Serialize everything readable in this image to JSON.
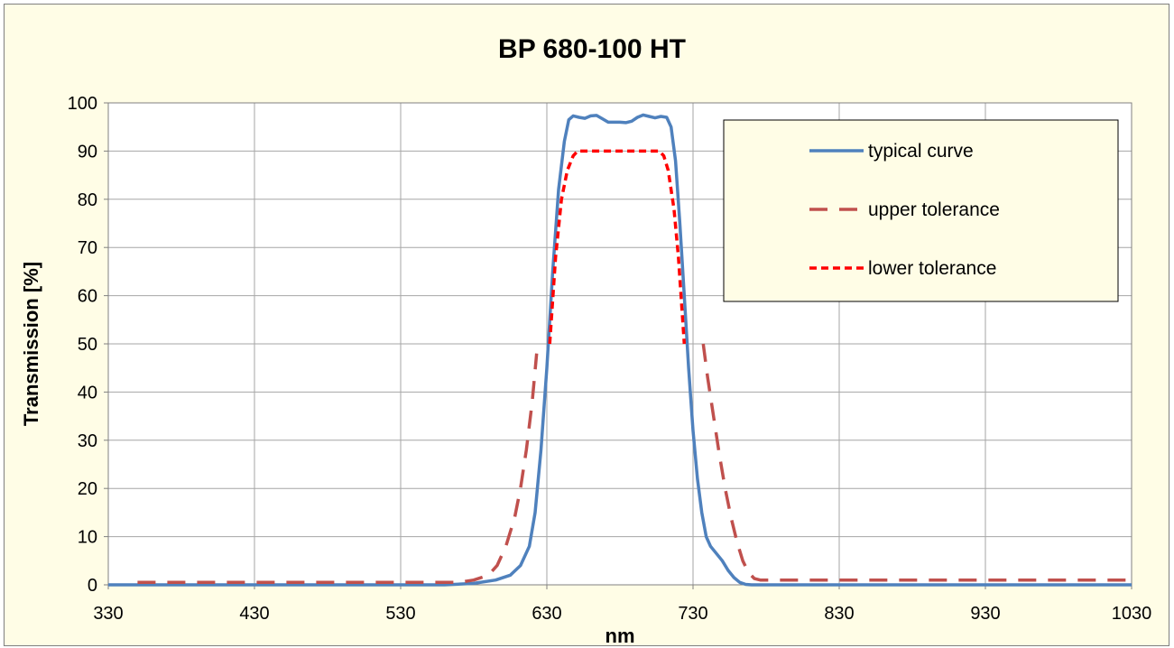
{
  "chart_data": {
    "type": "line",
    "title": "BP 680-100  HT",
    "xlabel": "nm",
    "ylabel": "Transmission [%]",
    "xlim": [
      330,
      1030
    ],
    "ylim": [
      0,
      100
    ],
    "x_ticks": [
      "330",
      "430",
      "530",
      "630",
      "730",
      "830",
      "930",
      "1030"
    ],
    "y_ticks": [
      "0",
      "10",
      "20",
      "30",
      "40",
      "50",
      "60",
      "70",
      "80",
      "90",
      "100"
    ],
    "grid": true,
    "legend_position": "top-right",
    "background_color": "#fffde6",
    "plot_background_color": "#ffffff",
    "series": [
      {
        "name": "typical curve",
        "color": "#4f81bd",
        "style": "solid",
        "points": [
          [
            330,
            0
          ],
          [
            560,
            0
          ],
          [
            580,
            0.3
          ],
          [
            595,
            1
          ],
          [
            605,
            2
          ],
          [
            612,
            4
          ],
          [
            618,
            8
          ],
          [
            622,
            15
          ],
          [
            626,
            28
          ],
          [
            630,
            45
          ],
          [
            634,
            65
          ],
          [
            638,
            82
          ],
          [
            642,
            92
          ],
          [
            645,
            96.5
          ],
          [
            648,
            97.3
          ],
          [
            652,
            97
          ],
          [
            656,
            96.8
          ],
          [
            660,
            97.3
          ],
          [
            664,
            97.4
          ],
          [
            668,
            96.7
          ],
          [
            672,
            96
          ],
          [
            676,
            96
          ],
          [
            680,
            96
          ],
          [
            684,
            95.9
          ],
          [
            688,
            96.2
          ],
          [
            692,
            97
          ],
          [
            696,
            97.5
          ],
          [
            700,
            97.2
          ],
          [
            704,
            96.9
          ],
          [
            708,
            97.2
          ],
          [
            712,
            97
          ],
          [
            715,
            95
          ],
          [
            718,
            88
          ],
          [
            721,
            75
          ],
          [
            724,
            60
          ],
          [
            727,
            45
          ],
          [
            730,
            32
          ],
          [
            733,
            22
          ],
          [
            736,
            15
          ],
          [
            739,
            10
          ],
          [
            742,
            8
          ],
          [
            746,
            6.5
          ],
          [
            750,
            5
          ],
          [
            754,
            3
          ],
          [
            758,
            1.5
          ],
          [
            762,
            0.5
          ],
          [
            766,
            0.1
          ],
          [
            770,
            0
          ],
          [
            1030,
            0
          ]
        ]
      },
      {
        "name": "upper tolerance",
        "color": "#c0504d",
        "style": "long-dash",
        "points": [
          [
            350,
            0.5
          ],
          [
            570,
            0.5
          ],
          [
            580,
            1
          ],
          [
            590,
            2
          ],
          [
            596,
            4
          ],
          [
            602,
            8
          ],
          [
            608,
            14
          ],
          [
            612,
            20
          ],
          [
            616,
            28
          ],
          [
            620,
            38
          ],
          [
            623,
            48
          ],
          null,
          [
            737,
            50
          ],
          [
            740,
            43
          ],
          [
            744,
            35
          ],
          [
            748,
            27
          ],
          [
            752,
            20
          ],
          [
            756,
            14
          ],
          [
            760,
            9
          ],
          [
            764,
            5
          ],
          [
            768,
            2.5
          ],
          [
            772,
            1.3
          ],
          [
            776,
            1
          ],
          [
            1030,
            1
          ]
        ]
      },
      {
        "name": "lower tolerance",
        "color": "#ff0000",
        "style": "short-dash",
        "points": [
          [
            632,
            50
          ],
          [
            636,
            68
          ],
          [
            640,
            80
          ],
          [
            644,
            86
          ],
          [
            648,
            89
          ],
          [
            651,
            90
          ],
          [
            707,
            90
          ],
          [
            710,
            89
          ],
          [
            713,
            86
          ],
          [
            717,
            78
          ],
          [
            720,
            68
          ],
          [
            724,
            50
          ]
        ]
      }
    ]
  }
}
